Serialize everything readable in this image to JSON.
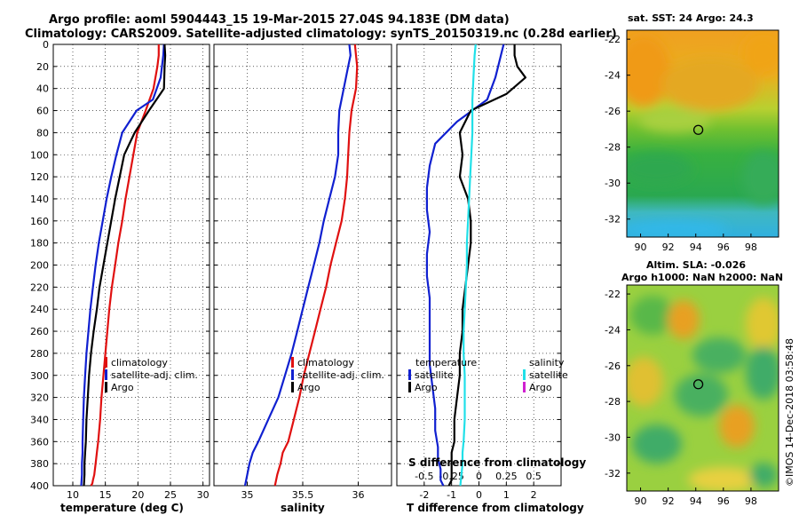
{
  "header": {
    "line1": "Argo profile: aoml 5904443_15 19-Mar-2015 27.04S 94.183E (DM data)",
    "line2": "Climatology: CARS2009. Satellite-adjusted climatology: synTS_20150319.nc (0.28d earlier)"
  },
  "colors": {
    "climatology": "#e01010",
    "satellite": "#1020d0",
    "argo": "#000000",
    "sat_salinity": "#20e0e8",
    "argo_salinity": "#d020d0"
  },
  "chart_data": [
    {
      "type": "line",
      "id": "temperature",
      "xlabel": "temperature (deg C)",
      "ylabel": "",
      "xlim": [
        7,
        31
      ],
      "ylim": [
        400,
        0
      ],
      "xticks": [
        10,
        15,
        20,
        25,
        30
      ],
      "yticks": [
        0,
        20,
        40,
        60,
        80,
        100,
        120,
        140,
        160,
        180,
        200,
        220,
        240,
        260,
        280,
        300,
        320,
        340,
        360,
        380,
        400
      ],
      "legend": [
        "climatology",
        "satellite-adj. clim.",
        "Argo"
      ],
      "series": [
        {
          "name": "climatology",
          "color_key": "climatology",
          "x": [
            23.2,
            23.2,
            23.0,
            22.4,
            21.2,
            19.9,
            19.3,
            18.7,
            18.1,
            17.6,
            17.0,
            16.5,
            16.0,
            15.6,
            15.3,
            15.0,
            14.7,
            14.4,
            14.2,
            13.9,
            13.7,
            13.5,
            13.3,
            13.1,
            13.0,
            12.8
          ],
          "y": [
            0,
            10,
            20,
            40,
            60,
            80,
            100,
            120,
            140,
            160,
            180,
            200,
            220,
            240,
            260,
            280,
            300,
            320,
            340,
            360,
            370,
            380,
            390,
            395,
            398,
            400
          ]
        },
        {
          "name": "satellite-adj. clim.",
          "color_key": "satellite",
          "x": [
            24.0,
            23.9,
            23.5,
            22.3,
            19.8,
            17.6,
            16.7,
            15.9,
            15.2,
            14.6,
            14.0,
            13.5,
            13.1,
            12.7,
            12.4,
            12.1,
            11.9,
            11.7,
            11.6,
            11.5,
            11.5,
            11.4,
            11.4,
            11.3
          ],
          "y": [
            0,
            10,
            30,
            50,
            60,
            80,
            100,
            120,
            140,
            160,
            180,
            200,
            220,
            240,
            260,
            280,
            300,
            320,
            340,
            360,
            370,
            380,
            390,
            400
          ]
        },
        {
          "name": "Argo",
          "color_key": "argo",
          "x": [
            24.1,
            24.2,
            24.1,
            24.0,
            21.7,
            19.5,
            17.9,
            17.2,
            16.5,
            15.9,
            15.3,
            14.7,
            14.1,
            13.7,
            13.2,
            12.8,
            12.5,
            12.3,
            12.1,
            12.0,
            11.9,
            11.8,
            11.8,
            11.7
          ],
          "y": [
            0,
            10,
            20,
            40,
            60,
            80,
            100,
            120,
            140,
            160,
            180,
            200,
            220,
            240,
            260,
            280,
            300,
            320,
            340,
            360,
            370,
            380,
            390,
            400
          ]
        }
      ]
    },
    {
      "type": "line",
      "id": "salinity",
      "xlabel": "salinity",
      "xlim": [
        34.7,
        36.3
      ],
      "ylim": [
        400,
        0
      ],
      "xticks": [
        35,
        35.5,
        36
      ],
      "xtick_labels": [
        "35",
        "35.5",
        "36"
      ],
      "legend": [
        "climatology",
        "satellite-adj. clim.",
        "Argo"
      ],
      "series": [
        {
          "name": "climatology",
          "color_key": "climatology",
          "x": [
            35.97,
            35.98,
            35.99,
            35.98,
            35.94,
            35.92,
            35.91,
            35.9,
            35.88,
            35.85,
            35.8,
            35.75,
            35.71,
            35.66,
            35.61,
            35.56,
            35.51,
            35.47,
            35.42,
            35.37,
            35.32,
            35.3,
            35.27,
            35.25
          ],
          "y": [
            0,
            10,
            20,
            40,
            60,
            80,
            100,
            120,
            140,
            160,
            180,
            200,
            220,
            240,
            260,
            280,
            300,
            320,
            340,
            360,
            370,
            380,
            390,
            400
          ]
        },
        {
          "name": "satellite-adj. clim.",
          "color_key": "satellite",
          "x": [
            35.92,
            35.93,
            35.91,
            35.87,
            35.83,
            35.82,
            35.82,
            35.79,
            35.74,
            35.69,
            35.65,
            35.6,
            35.55,
            35.5,
            35.45,
            35.4,
            35.34,
            35.28,
            35.19,
            35.1,
            35.05,
            35.02,
            35.0,
            34.98
          ],
          "y": [
            0,
            10,
            20,
            40,
            60,
            80,
            100,
            120,
            140,
            160,
            180,
            200,
            220,
            240,
            260,
            280,
            300,
            320,
            340,
            360,
            370,
            380,
            390,
            400
          ]
        }
      ]
    },
    {
      "type": "line",
      "id": "difference",
      "xlabel": "T difference from climatology",
      "top_axis_label": "S difference from climatology",
      "xlim": [
        -3,
        3
      ],
      "ylim": [
        400,
        0
      ],
      "xticks": [
        -2,
        -1,
        0,
        1,
        2
      ],
      "xtick_labels": [
        "-2",
        "-1",
        "0",
        "1",
        "2"
      ],
      "top_ticks": [
        -0.5,
        -0.25,
        0,
        0.25,
        0.5
      ],
      "top_tick_labels": [
        "-0.5",
        "-0.25",
        "0",
        "0.25",
        "0.5"
      ],
      "s_scale": 4,
      "legend_temperature_title": "temperature",
      "legend_salinity_title": "salinity",
      "legend_temperature": [
        "satellite",
        "Argo"
      ],
      "legend_salinity": [
        "satellite",
        "Argo"
      ],
      "series": [
        {
          "name": "T satellite",
          "color_key": "satellite",
          "x": [
            0.9,
            0.8,
            0.6,
            0.3,
            -0.8,
            -1.6,
            -1.8,
            -1.9,
            -1.9,
            -1.8,
            -1.9,
            -1.9,
            -1.8,
            -1.8,
            -1.8,
            -1.8,
            -1.7,
            -1.6,
            -1.6,
            -1.5,
            -1.5,
            -1.4,
            -1.4,
            -1.3
          ],
          "y": [
            0,
            10,
            30,
            50,
            70,
            90,
            110,
            130,
            150,
            170,
            190,
            210,
            230,
            250,
            270,
            290,
            310,
            330,
            350,
            365,
            375,
            385,
            395,
            400
          ]
        },
        {
          "name": "T Argo",
          "color_key": "argo",
          "x": [
            1.3,
            1.3,
            1.4,
            1.7,
            1.0,
            -0.3,
            -0.7,
            -0.6,
            -0.7,
            -0.4,
            -0.3,
            -0.3,
            -0.4,
            -0.5,
            -0.6,
            -0.6,
            -0.7,
            -0.7,
            -0.8,
            -0.9,
            -0.9,
            -1.0,
            -1.0,
            -1.0,
            -1.0,
            -1.1
          ],
          "y": [
            0,
            10,
            20,
            30,
            45,
            60,
            80,
            100,
            120,
            140,
            160,
            180,
            200,
            220,
            240,
            260,
            280,
            300,
            320,
            340,
            360,
            370,
            380,
            390,
            395,
            400
          ]
        },
        {
          "name": "S satellite",
          "color_key": "sat_salinity",
          "x": [
            -0.03,
            -0.04,
            -0.05,
            -0.06,
            -0.06,
            -0.07,
            -0.08,
            -0.09,
            -0.1,
            -0.11,
            -0.11,
            -0.12,
            -0.13,
            -0.14,
            -0.14,
            -0.13,
            -0.13,
            -0.13,
            -0.14,
            -0.15,
            -0.15,
            -0.16,
            -0.17
          ],
          "y": [
            0,
            10,
            30,
            50,
            80,
            100,
            120,
            140,
            160,
            180,
            200,
            220,
            240,
            260,
            280,
            300,
            320,
            340,
            360,
            370,
            380,
            390,
            400
          ]
        }
      ]
    },
    {
      "type": "heatmap",
      "id": "sst_map",
      "title": "sat. SST: 24 Argo: 24.3",
      "xlim": [
        89,
        100
      ],
      "ylim": [
        -33,
        -21.5
      ],
      "xticks": [
        90,
        92,
        94,
        96,
        98
      ],
      "yticks": [
        -22,
        -24,
        -26,
        -28,
        -30,
        -32
      ],
      "marker": {
        "lon": 94.183,
        "lat": -27.04
      }
    },
    {
      "type": "heatmap",
      "id": "sla_map",
      "title_line1": "Altim. SLA: -0.026",
      "title_line2": "Argo h1000: NaN h2000: NaN",
      "xlim": [
        89,
        100
      ],
      "ylim": [
        -33,
        -21.5
      ],
      "xticks": [
        90,
        92,
        94,
        96,
        98
      ],
      "yticks": [
        -22,
        -24,
        -26,
        -28,
        -30,
        -32
      ],
      "marker": {
        "lon": 94.183,
        "lat": -27.04
      }
    }
  ],
  "footer": {
    "credit": "©IMOS 14-Dec-2018 03:58:48"
  }
}
